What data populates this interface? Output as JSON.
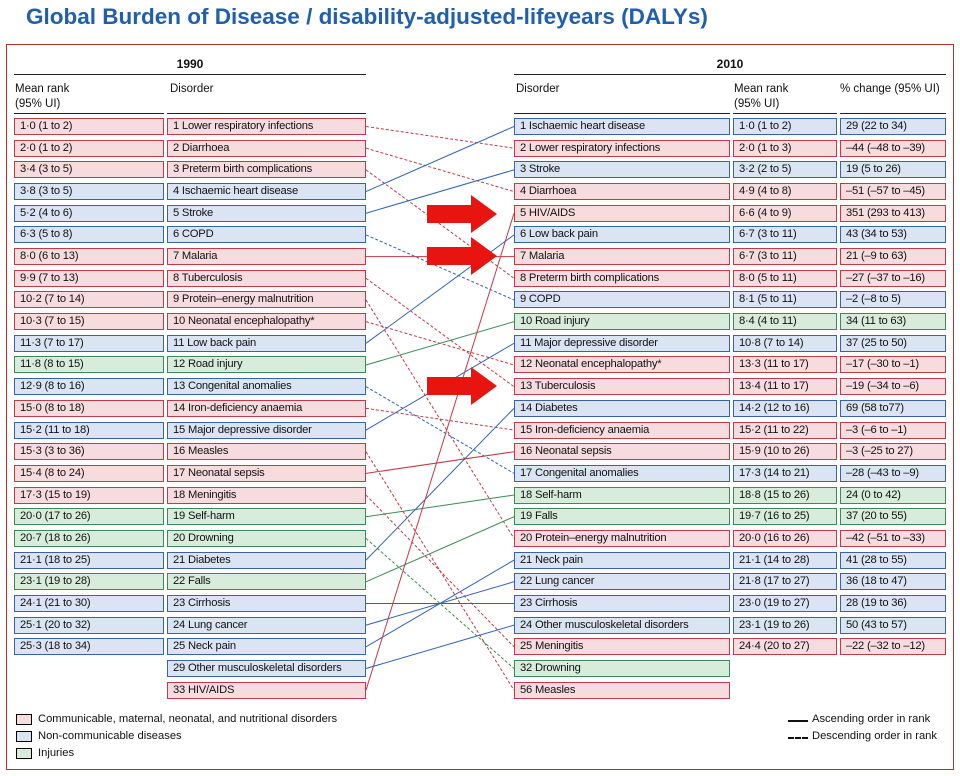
{
  "title": "Global Burden of Disease / disability-adjusted-lifeyears  (DALYs)",
  "headers": {
    "year_left": "1990",
    "year_right": "2010",
    "mean_rank": "Mean rank",
    "ci": "(95% UI)",
    "disorder": "Disorder",
    "pct_change": "% change (95% UI)"
  },
  "colors": {
    "communicable": "#f7dcdf",
    "non_communicable": "#dbe4f2",
    "injuries": "#d8ecdc",
    "arrow": "#e8140f"
  },
  "left_rows": [
    {
      "rank": "1·0 (1 to 2)",
      "disorder": "1 Lower respiratory infections",
      "cat": "com"
    },
    {
      "rank": "2·0 (1 to 2)",
      "disorder": "2 Diarrhoea",
      "cat": "com"
    },
    {
      "rank": "3·4 (3 to 5)",
      "disorder": "3 Preterm birth complications",
      "cat": "com"
    },
    {
      "rank": "3·8 (3 to 5)",
      "disorder": "4 Ischaemic heart disease",
      "cat": "ncd"
    },
    {
      "rank": "5·2 (4 to 6)",
      "disorder": "5 Stroke",
      "cat": "ncd"
    },
    {
      "rank": "6·3 (5 to 8)",
      "disorder": "6 COPD",
      "cat": "ncd"
    },
    {
      "rank": "8·0 (6 to 13)",
      "disorder": "7 Malaria",
      "cat": "com"
    },
    {
      "rank": "9·9 (7 to 13)",
      "disorder": "8 Tuberculosis",
      "cat": "com"
    },
    {
      "rank": "10·2 (7 to 14)",
      "disorder": "9 Protein–energy malnutrition",
      "cat": "com"
    },
    {
      "rank": "10·3 (7 to 15)",
      "disorder": "10 Neonatal encephalopathy*",
      "cat": "com"
    },
    {
      "rank": "11·3 (7 to 17)",
      "disorder": "11 Low back pain",
      "cat": "ncd"
    },
    {
      "rank": "11·8 (8 to 15)",
      "disorder": "12 Road injury",
      "cat": "inj"
    },
    {
      "rank": "12·9 (8 to 16)",
      "disorder": "13 Congenital anomalies",
      "cat": "ncd"
    },
    {
      "rank": "15·0 (8 to 18)",
      "disorder": "14 Iron-deficiency anaemia",
      "cat": "com"
    },
    {
      "rank": "15·2 (11 to 18)",
      "disorder": "15 Major depressive disorder",
      "cat": "ncd"
    },
    {
      "rank": "15·3 (3 to 36)",
      "disorder": "16 Measles",
      "cat": "com"
    },
    {
      "rank": "15·4 (8 to 24)",
      "disorder": "17 Neonatal sepsis",
      "cat": "com"
    },
    {
      "rank": "17·3 (15 to 19)",
      "disorder": "18 Meningitis",
      "cat": "com"
    },
    {
      "rank": "20·0 (17 to 26)",
      "disorder": "19 Self-harm",
      "cat": "inj"
    },
    {
      "rank": "20·7 (18 to 26)",
      "disorder": "20 Drowning",
      "cat": "inj"
    },
    {
      "rank": "21·1 (18 to 25)",
      "disorder": "21 Diabetes",
      "cat": "ncd"
    },
    {
      "rank": "23·1 (19 to 28)",
      "disorder": "22 Falls",
      "cat": "inj"
    },
    {
      "rank": "24·1 (21 to 30)",
      "disorder": "23 Cirrhosis",
      "cat": "ncd"
    },
    {
      "rank": "25·1 (20 to 32)",
      "disorder": "24 Lung cancer",
      "cat": "ncd"
    },
    {
      "rank": "25·3 (18 to 34)",
      "disorder": "25 Neck pain",
      "cat": "ncd"
    },
    {
      "rank": "",
      "disorder": "29 Other musculoskeletal disorders",
      "cat": "ncd"
    },
    {
      "rank": "",
      "disorder": "33 HIV/AIDS",
      "cat": "com"
    }
  ],
  "right_rows": [
    {
      "disorder": "1 Ischaemic heart disease",
      "rank": "1·0 (1 to 2)",
      "change": "29 (22 to 34)",
      "cat": "ncd"
    },
    {
      "disorder": "2 Lower respiratory infections",
      "rank": "2·0 (1 to 3)",
      "change": "–44 (–48 to –39)",
      "cat": "com"
    },
    {
      "disorder": "3 Stroke",
      "rank": "3·2 (2 to 5)",
      "change": "19 (5 to 26)",
      "cat": "ncd"
    },
    {
      "disorder": "4 Diarrhoea",
      "rank": "4·9 (4 to 8)",
      "change": "–51 (–57 to –45)",
      "cat": "com"
    },
    {
      "disorder": "5 HIV/AIDS",
      "rank": "6·6 (4 to 9)",
      "change": "351 (293 to 413)",
      "cat": "com"
    },
    {
      "disorder": "6 Low back pain",
      "rank": "6·7 (3 to 11)",
      "change": "43 (34 to 53)",
      "cat": "ncd"
    },
    {
      "disorder": "7 Malaria",
      "rank": "6·7 (3 to 11)",
      "change": "21 (–9 to 63)",
      "cat": "com"
    },
    {
      "disorder": "8 Preterm birth complications",
      "rank": "8·0 (5 to 11)",
      "change": "–27 (–37 to –16)",
      "cat": "com"
    },
    {
      "disorder": "9 COPD",
      "rank": "8·1 (5 to 11)",
      "change": "–2 (–8 to 5)",
      "cat": "ncd"
    },
    {
      "disorder": "10 Road injury",
      "rank": "8·4 (4 to 11)",
      "change": "34 (11 to 63)",
      "cat": "inj"
    },
    {
      "disorder": "11 Major depressive disorder",
      "rank": "10·8 (7 to 14)",
      "change": "37 (25 to 50)",
      "cat": "ncd"
    },
    {
      "disorder": "12 Neonatal encephalopathy*",
      "rank": "13·3 (11 to 17)",
      "change": "–17 (–30 to –1)",
      "cat": "com"
    },
    {
      "disorder": "13 Tuberculosis",
      "rank": "13·4 (11 to 17)",
      "change": "–19 (–34 to –6)",
      "cat": "com"
    },
    {
      "disorder": "14 Diabetes",
      "rank": "14·2 (12 to 16)",
      "change": "69 (58 to77)",
      "cat": "ncd"
    },
    {
      "disorder": "15 Iron-deficiency anaemia",
      "rank": "15·2 (11 to 22)",
      "change": "–3 (–6 to –1)",
      "cat": "com"
    },
    {
      "disorder": "16 Neonatal sepsis",
      "rank": "15·9 (10 to 26)",
      "change": "–3 (–25 to 27)",
      "cat": "com"
    },
    {
      "disorder": "17 Congenital anomalies",
      "rank": "17·3 (14 to 21)",
      "change": "–28 (–43 to –9)",
      "cat": "ncd"
    },
    {
      "disorder": "18 Self-harm",
      "rank": "18·8 (15 to 26)",
      "change": "24 (0 to 42)",
      "cat": "inj"
    },
    {
      "disorder": "19 Falls",
      "rank": "19·7 (16 to 25)",
      "change": "37 (20 to 55)",
      "cat": "inj"
    },
    {
      "disorder": "20 Protein–energy malnutrition",
      "rank": "20·0 (16 to 26)",
      "change": "–42 (–51 to –33)",
      "cat": "com"
    },
    {
      "disorder": "21 Neck pain",
      "rank": "21·1 (14 to 28)",
      "change": "41 (28 to 55)",
      "cat": "ncd"
    },
    {
      "disorder": "22 Lung cancer",
      "rank": "21·8 (17 to 27)",
      "change": "36 (18 to 47)",
      "cat": "ncd"
    },
    {
      "disorder": "23 Cirrhosis",
      "rank": "23·0 (19 to 27)",
      "change": "28 (19 to 36)",
      "cat": "ncd"
    },
    {
      "disorder": "24 Other musculoskeletal disorders",
      "rank": "23·1 (19 to 26)",
      "change": "50 (43 to 57)",
      "cat": "ncd"
    },
    {
      "disorder": "25 Meningitis",
      "rank": "24·4 (20 to 27)",
      "change": "–22 (–32 to –12)",
      "cat": "com"
    },
    {
      "disorder": "32 Drowning",
      "rank": "",
      "change": "",
      "cat": "inj"
    },
    {
      "disorder": "56 Measles",
      "rank": "",
      "change": "",
      "cat": "com"
    }
  ],
  "connections": [
    {
      "from": 1,
      "to": 2,
      "style": "dashed",
      "cat": "com"
    },
    {
      "from": 2,
      "to": 4,
      "style": "dashed",
      "cat": "com"
    },
    {
      "from": 3,
      "to": 8,
      "style": "dashed",
      "cat": "com"
    },
    {
      "from": 4,
      "to": 1,
      "style": "solid",
      "cat": "ncd"
    },
    {
      "from": 5,
      "to": 3,
      "style": "solid",
      "cat": "ncd"
    },
    {
      "from": 6,
      "to": 9,
      "style": "dashed",
      "cat": "ncd"
    },
    {
      "from": 7,
      "to": 7,
      "style": "solid",
      "cat": "com"
    },
    {
      "from": 8,
      "to": 13,
      "style": "dashed",
      "cat": "com"
    },
    {
      "from": 9,
      "to": 20,
      "style": "dashed",
      "cat": "com"
    },
    {
      "from": 10,
      "to": 12,
      "style": "dashed",
      "cat": "com"
    },
    {
      "from": 11,
      "to": 6,
      "style": "solid",
      "cat": "ncd"
    },
    {
      "from": 12,
      "to": 10,
      "style": "solid",
      "cat": "inj"
    },
    {
      "from": 13,
      "to": 17,
      "style": "dashed",
      "cat": "ncd"
    },
    {
      "from": 14,
      "to": 15,
      "style": "dashed",
      "cat": "com"
    },
    {
      "from": 15,
      "to": 11,
      "style": "solid",
      "cat": "ncd"
    },
    {
      "from": 16,
      "to": 56,
      "style": "dashed",
      "cat": "com"
    },
    {
      "from": 17,
      "to": 16,
      "style": "solid",
      "cat": "com"
    },
    {
      "from": 18,
      "to": 25,
      "style": "dashed",
      "cat": "com"
    },
    {
      "from": 19,
      "to": 18,
      "style": "solid",
      "cat": "inj"
    },
    {
      "from": 20,
      "to": 32,
      "style": "dashed",
      "cat": "inj"
    },
    {
      "from": 21,
      "to": 14,
      "style": "solid",
      "cat": "ncd"
    },
    {
      "from": 22,
      "to": 19,
      "style": "solid",
      "cat": "inj"
    },
    {
      "from": 23,
      "to": 23,
      "style": "solid",
      "cat": "ncd"
    },
    {
      "from": 24,
      "to": 22,
      "style": "solid",
      "cat": "ncd"
    },
    {
      "from": 25,
      "to": 21,
      "style": "solid",
      "cat": "ncd"
    },
    {
      "from": 29,
      "to": 24,
      "style": "solid",
      "cat": "ncd"
    },
    {
      "from": 33,
      "to": 5,
      "style": "solid",
      "cat": "com"
    }
  ],
  "highlight_arrows": [
    "5 HIV/AIDS",
    "7 Malaria",
    "13 Tuberculosis"
  ],
  "legend": {
    "communicable": "Communicable, maternal, neonatal, and nutritional disorders",
    "non_communicable": "Non-communicable diseases",
    "injuries": "Injuries",
    "ascending": "Ascending order in rank",
    "descending": "Descending order in rank"
  }
}
